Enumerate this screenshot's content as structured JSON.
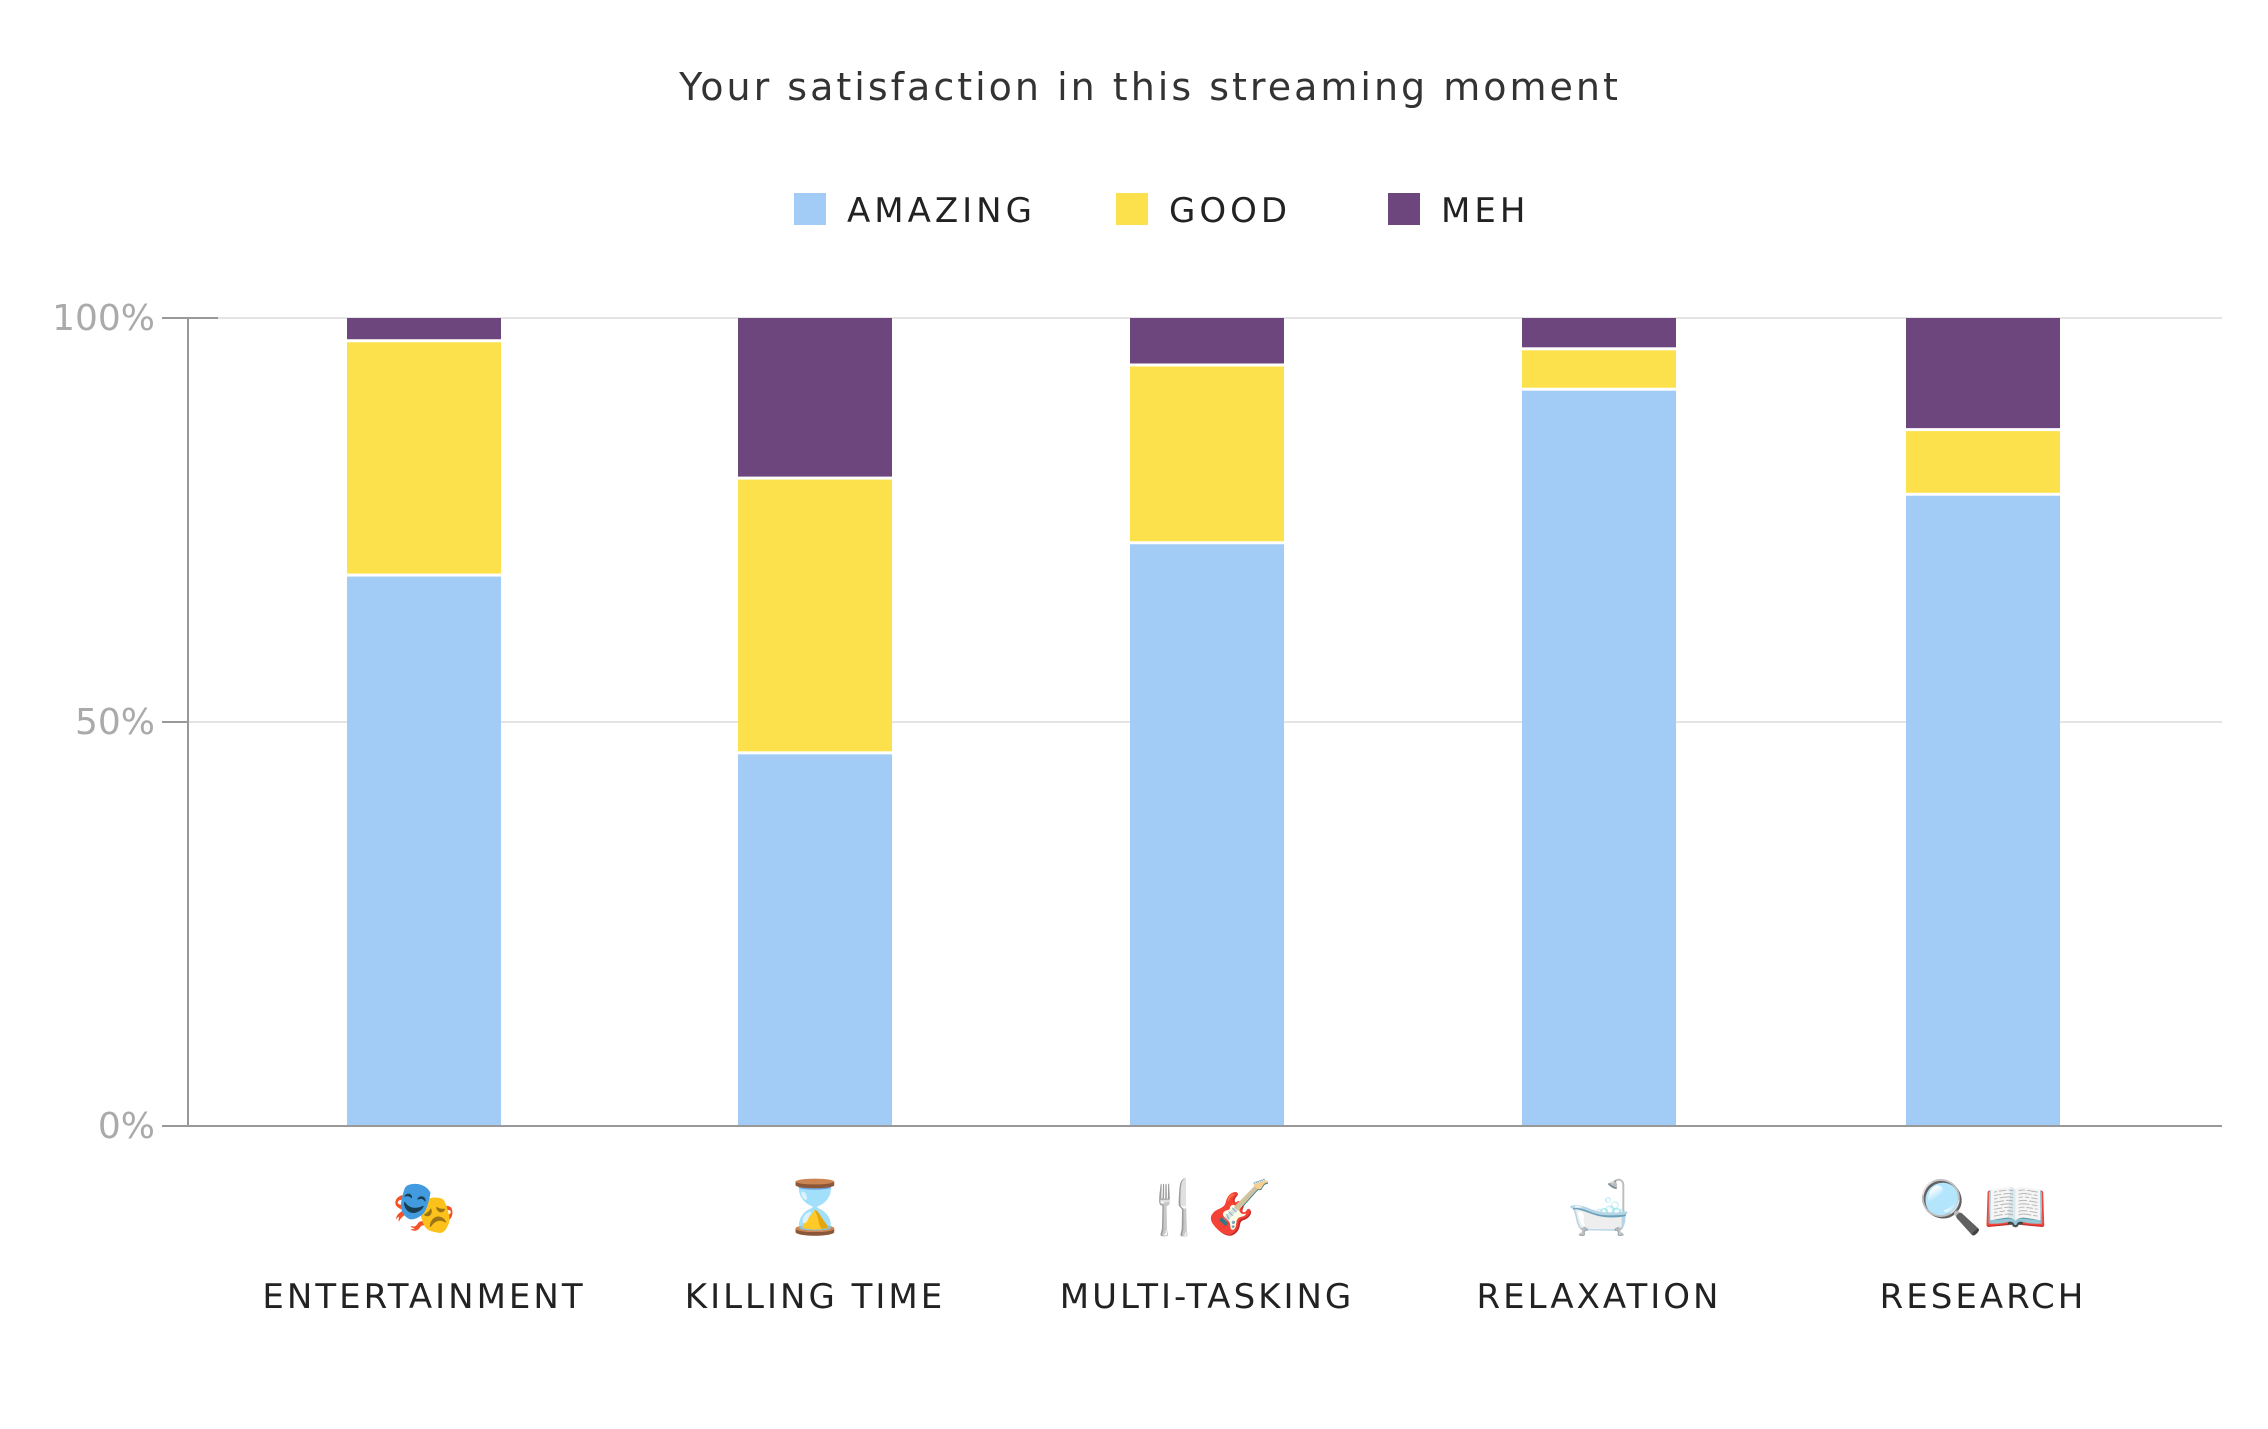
{
  "chart_data": {
    "type": "bar",
    "stacked": true,
    "title": "Your satisfaction in this streaming moment",
    "xlabel": "",
    "ylabel": "",
    "ylim": [
      0,
      100
    ],
    "yticks": [
      "0%",
      "50%",
      "100%"
    ],
    "grid": true,
    "legend_position": "top-center",
    "categories": [
      "ENTERTAINMENT",
      "KILLING TIME",
      "MULTI-TASKING",
      "RELAXATION",
      "RESEARCH"
    ],
    "category_icons": [
      "theater-masks-icon",
      "hourglass-icon",
      "fork-knife-guitar-icon",
      "bathtub-icon",
      "magnifier-book-icon"
    ],
    "series": [
      {
        "name": "AMAZING",
        "color": "#a2cbf6",
        "values": [
          68,
          46,
          72,
          91,
          78
        ]
      },
      {
        "name": "GOOD",
        "color": "#fce14c",
        "values": [
          29,
          34,
          22,
          5,
          8
        ]
      },
      {
        "name": "MEH",
        "color": "#6d467d",
        "values": [
          3,
          20,
          6,
          4,
          14
        ]
      }
    ]
  }
}
